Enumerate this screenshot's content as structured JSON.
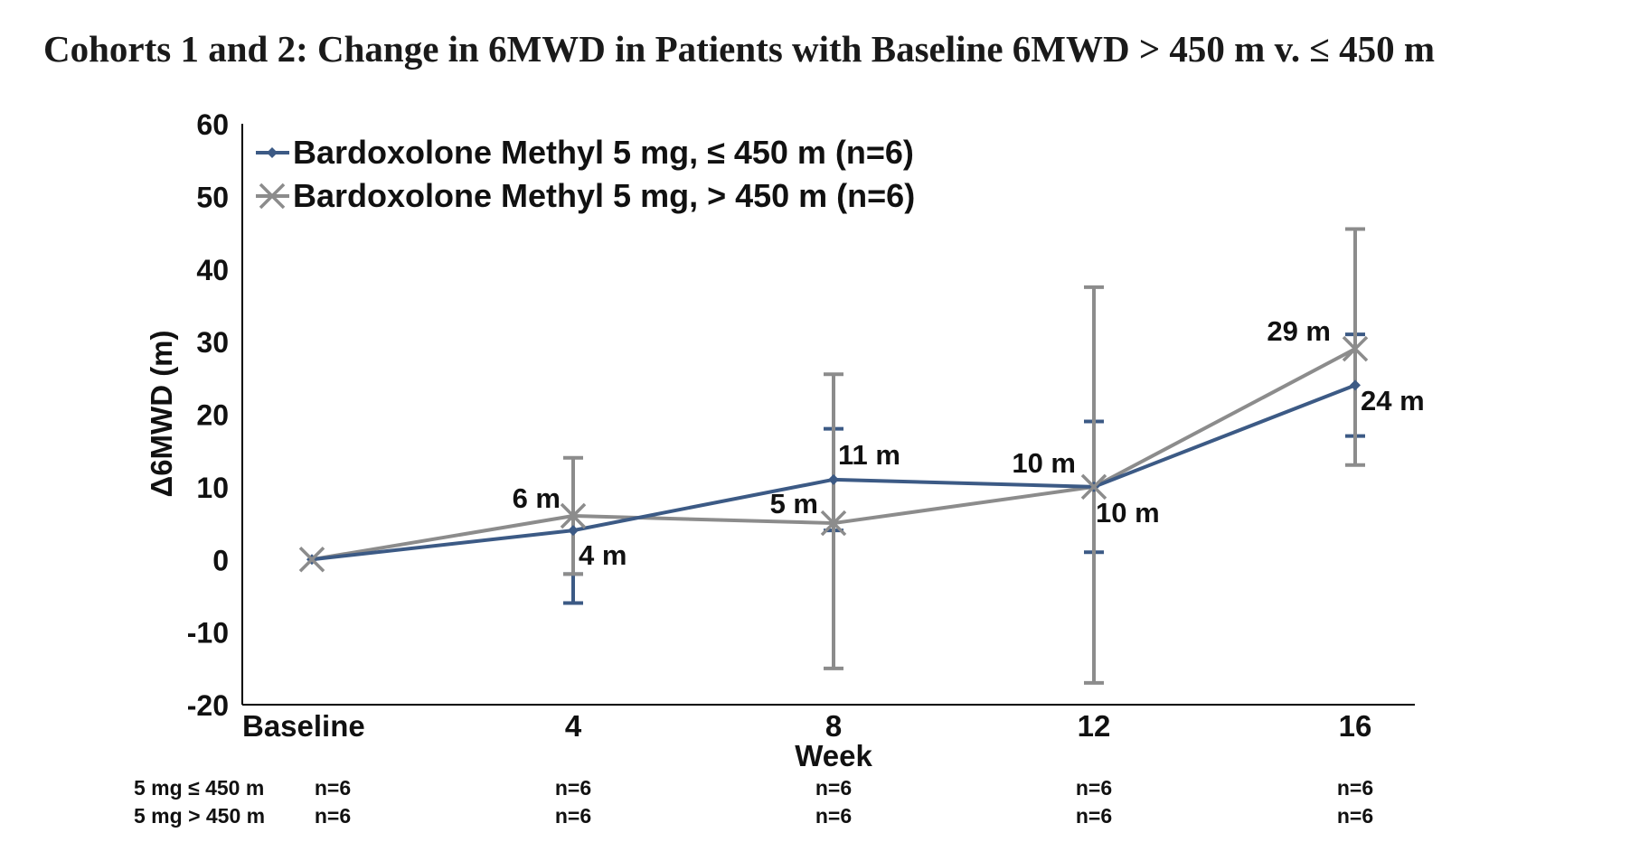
{
  "title": "Cohorts 1 and 2: Change in 6MWD in Patients with Baseline 6MWD > 450 m v. ≤ 450 m",
  "chart_data": {
    "type": "line",
    "categories": [
      "Baseline",
      "4",
      "8",
      "12",
      "16"
    ],
    "xlabel": "Week",
    "ylabel": "Δ6MWD (m)",
    "ylim": [
      -20,
      60
    ],
    "yticks": [
      -20,
      -10,
      0,
      10,
      20,
      30,
      40,
      50,
      60
    ],
    "grid": false,
    "legend_position": "top-left",
    "series": [
      {
        "name": "Bardoxolone Methyl 5 mg, ≤ 450 m (n=6)",
        "color": "#3c5a85",
        "marker": "diamond",
        "values": [
          0,
          4,
          11,
          10,
          24
        ],
        "error_low": [
          null,
          -6,
          4,
          1,
          17
        ],
        "error_high": [
          null,
          -2,
          18,
          19,
          31
        ],
        "point_labels": [
          "",
          "4 m",
          "11 m",
          "10 m",
          "24 m"
        ]
      },
      {
        "name": "Bardoxolone Methyl 5 mg, > 450 m (n=6)",
        "color": "#8c8c8c",
        "marker": "x",
        "values": [
          0,
          6,
          5,
          10,
          29
        ],
        "error_low": [
          null,
          -2,
          -15,
          -17,
          13
        ],
        "error_high": [
          null,
          14,
          25.5,
          37.5,
          45.5
        ],
        "point_labels": [
          "",
          "6 m",
          "5 m",
          "10 m",
          "29 m"
        ]
      }
    ],
    "n_table": {
      "rows": [
        {
          "label": "5 mg ≤ 450 m",
          "values": [
            "n=6",
            "n=6",
            "n=6",
            "n=6",
            "n=6"
          ]
        },
        {
          "label": "5 mg > 450 m",
          "values": [
            "n=6",
            "n=6",
            "n=6",
            "n=6",
            "n=6"
          ]
        }
      ]
    }
  }
}
